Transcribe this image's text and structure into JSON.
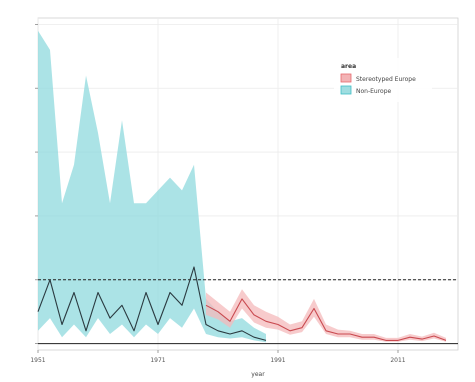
{
  "chart_data": {
    "type": "line",
    "title": "",
    "xlabel": "year",
    "ylabel": "",
    "xlim": [
      1951,
      2021
    ],
    "ylim": [
      -0.1,
      5.1
    ],
    "xticks": [
      1951,
      1971,
      1991,
      2011
    ],
    "xtick_labels": [
      "1951",
      "1971",
      "1991",
      "2011"
    ],
    "yticks": [
      0,
      1,
      2,
      3,
      4,
      5
    ],
    "yticks_labeled": false,
    "grid": true,
    "reference_lines": [
      {
        "y": 1,
        "style": "dashed"
      },
      {
        "y": 0,
        "style": "solid"
      }
    ],
    "legend": {
      "title": "area",
      "placement": "top-right",
      "entries": [
        "Stereotyped Europe",
        "Non-Europe"
      ]
    },
    "series": [
      {
        "name": "Stereotyped Europe",
        "color": "#e66a6f",
        "x": [
          1979,
          1981,
          1983,
          1985,
          1987,
          1989,
          1991,
          1993,
          1995,
          1997,
          1999,
          2001,
          2003,
          2005,
          2007,
          2009,
          2011,
          2013,
          2015,
          2017,
          2019
        ],
        "values": [
          0.6,
          0.5,
          0.35,
          0.7,
          0.45,
          0.35,
          0.3,
          0.2,
          0.25,
          0.55,
          0.2,
          0.15,
          0.15,
          0.1,
          0.1,
          0.05,
          0.05,
          0.1,
          0.07,
          0.12,
          0.05
        ],
        "lower": [
          0.45,
          0.38,
          0.25,
          0.55,
          0.33,
          0.25,
          0.22,
          0.14,
          0.18,
          0.42,
          0.15,
          0.1,
          0.1,
          0.06,
          0.06,
          0.03,
          0.03,
          0.06,
          0.04,
          0.08,
          0.03
        ],
        "upper": [
          0.8,
          0.65,
          0.5,
          0.85,
          0.6,
          0.5,
          0.42,
          0.3,
          0.35,
          0.7,
          0.3,
          0.22,
          0.2,
          0.15,
          0.15,
          0.09,
          0.09,
          0.15,
          0.11,
          0.17,
          0.09
        ]
      },
      {
        "name": "Non-Europe",
        "color": "#3fbfc5",
        "x": [
          1951,
          1953,
          1955,
          1957,
          1959,
          1961,
          1963,
          1965,
          1967,
          1969,
          1971,
          1973,
          1975,
          1977,
          1979,
          1981,
          1983,
          1985,
          1987,
          1989
        ],
        "values": [
          0.5,
          1.0,
          0.3,
          0.8,
          0.2,
          0.8,
          0.4,
          0.6,
          0.2,
          0.8,
          0.3,
          0.8,
          0.6,
          1.2,
          0.3,
          0.2,
          0.15,
          0.2,
          0.1,
          0.05
        ],
        "lower": [
          0.2,
          0.4,
          0.1,
          0.3,
          0.1,
          0.4,
          0.15,
          0.3,
          0.1,
          0.3,
          0.15,
          0.4,
          0.25,
          0.55,
          0.15,
          0.1,
          0.08,
          0.1,
          0.05,
          0.02
        ],
        "upper": [
          4.9,
          4.6,
          2.2,
          2.8,
          4.2,
          3.3,
          2.2,
          3.5,
          2.2,
          2.2,
          2.4,
          2.6,
          2.4,
          2.8,
          0.7,
          0.5,
          0.35,
          0.4,
          0.25,
          0.15
        ]
      }
    ]
  }
}
